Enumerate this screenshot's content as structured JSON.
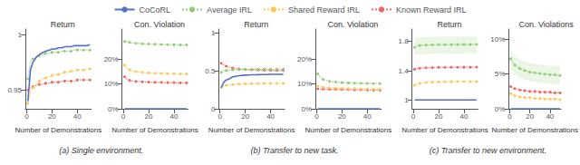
{
  "chart_data": [
    {
      "type": "line",
      "title": "Return",
      "xlabel": "Number of Demonstrations",
      "subtitle": "(a) Single environment.",
      "legend": "top",
      "grid": false,
      "x": [
        1,
        3,
        5,
        8,
        10,
        13,
        15,
        18,
        20,
        23,
        25,
        28,
        30,
        33,
        35,
        38,
        40,
        43,
        45,
        48,
        50
      ],
      "xlim": [
        -1,
        51
      ],
      "xticks": [
        0,
        20,
        40
      ],
      "ylim": [
        0.933,
        1.005
      ],
      "yticks": [
        0.95,
        1
      ],
      "series": [
        {
          "name": "CoCoRL",
          "line_style": "solid",
          "values": [
            0.94,
            0.968,
            0.975,
            0.98,
            0.982,
            0.984,
            0.985,
            0.986,
            0.987,
            0.987,
            0.988,
            0.988,
            0.989,
            0.989,
            0.989,
            0.99,
            0.99,
            0.99,
            0.99,
            0.99,
            0.991
          ]
        },
        {
          "name": "Average IRL",
          "line_style": "dotted",
          "marker": "circle",
          "values": [
            0.96,
            0.975,
            0.978,
            0.98,
            0.981,
            0.982,
            0.983,
            0.983,
            0.984,
            0.984,
            0.984,
            0.985,
            0.985,
            0.985,
            0.985,
            0.986,
            0.986,
            0.986,
            0.986,
            0.986,
            0.986
          ]
        },
        {
          "name": "Shared Reward IRL",
          "line_style": "dotted",
          "marker": "circle",
          "values": [
            0.938,
            0.948,
            0.952,
            0.956,
            0.958,
            0.96,
            0.961,
            0.962,
            0.963,
            0.964,
            0.964,
            0.965,
            0.966,
            0.966,
            0.967,
            0.967,
            0.968,
            0.968,
            0.968,
            0.969,
            0.969
          ]
        },
        {
          "name": "Known Reward IRL",
          "line_style": "dotted",
          "marker": "circle",
          "values": [
            0.95,
            0.952,
            0.953,
            0.954,
            0.955,
            0.955,
            0.956,
            0.956,
            0.957,
            0.957,
            0.957,
            0.958,
            0.958,
            0.958,
            0.958,
            0.958,
            0.959,
            0.959,
            0.959,
            0.959,
            0.959
          ]
        }
      ]
    },
    {
      "type": "line",
      "title": "Con. Violation",
      "xlabel": "Number of Demonstrations",
      "legend": "top",
      "grid": false,
      "x": [
        1,
        3,
        5,
        8,
        10,
        13,
        15,
        18,
        20,
        23,
        25,
        28,
        30,
        33,
        35,
        38,
        40,
        43,
        45,
        48,
        50
      ],
      "xlim": [
        -1,
        51
      ],
      "xticks": [
        0,
        20,
        40
      ],
      "ylim": [
        0.0,
        0.32
      ],
      "yticks": [
        {
          "value": 0.0,
          "label": "0%"
        },
        {
          "value": 0.1,
          "label": "10%"
        },
        {
          "value": 0.2,
          "label": "20%"
        }
      ],
      "series": [
        {
          "name": "CoCoRL",
          "line_style": "solid",
          "values": [
            0.0,
            0.0,
            0.0,
            0.0,
            0.0,
            0.0,
            0.0,
            0.0,
            0.0,
            0.0,
            0.0,
            0.0,
            0.0,
            0.0,
            0.0,
            0.0,
            0.0,
            0.0,
            0.0,
            0.0,
            0.0
          ]
        },
        {
          "name": "Average IRL",
          "line_style": "dotted",
          "marker": "circle",
          "values": [
            0.27,
            0.268,
            0.266,
            0.264,
            0.263,
            0.262,
            0.261,
            0.26,
            0.26,
            0.259,
            0.259,
            0.258,
            0.258,
            0.258,
            0.257,
            0.257,
            0.257,
            0.257,
            0.256,
            0.256,
            0.256
          ]
        },
        {
          "name": "Shared Reward IRL",
          "line_style": "dotted",
          "marker": "circle",
          "values": [
            0.175,
            0.162,
            0.156,
            0.151,
            0.149,
            0.147,
            0.146,
            0.145,
            0.144,
            0.143,
            0.143,
            0.142,
            0.142,
            0.142,
            0.141,
            0.141,
            0.141,
            0.141,
            0.14,
            0.14,
            0.14
          ]
        },
        {
          "name": "Known Reward IRL",
          "line_style": "dotted",
          "marker": "circle",
          "values": [
            0.128,
            0.118,
            0.114,
            0.111,
            0.11,
            0.109,
            0.108,
            0.108,
            0.107,
            0.107,
            0.106,
            0.106,
            0.106,
            0.105,
            0.105,
            0.105,
            0.105,
            0.104,
            0.104,
            0.104,
            0.104
          ]
        }
      ]
    },
    {
      "type": "line",
      "title": "Return",
      "xlabel": "Number of Demonstrations",
      "subtitle": "(b) Transfer to new task.",
      "legend": "top",
      "grid": false,
      "x": [
        1,
        3,
        5,
        8,
        10,
        13,
        15,
        18,
        20,
        23,
        25,
        28,
        30,
        33,
        35,
        38,
        40,
        43,
        45,
        48,
        50
      ],
      "xlim": [
        -1,
        51
      ],
      "xticks": [
        0,
        20,
        40
      ],
      "ylim": [
        0.0,
        1.05
      ],
      "yticks": [
        0,
        0.5,
        1
      ],
      "series": [
        {
          "name": "CoCoRL",
          "line_style": "solid",
          "values": [
            0.28,
            0.35,
            0.38,
            0.4,
            0.42,
            0.43,
            0.435,
            0.44,
            0.443,
            0.445,
            0.447,
            0.448,
            0.449,
            0.45,
            0.451,
            0.452,
            0.453,
            0.453,
            0.454,
            0.454,
            0.455
          ]
        },
        {
          "name": "Average IRL",
          "line_style": "dotted",
          "marker": "circle",
          "values": [
            0.48,
            0.5,
            0.505,
            0.51,
            0.513,
            0.515,
            0.516,
            0.517,
            0.518,
            0.518,
            0.519,
            0.519,
            0.52,
            0.52,
            0.521,
            0.521,
            0.521,
            0.522,
            0.522,
            0.522,
            0.522
          ]
        },
        {
          "name": "Shared Reward IRL",
          "line_style": "dotted",
          "marker": "circle",
          "values": [
            0.28,
            0.3,
            0.31,
            0.315,
            0.32,
            0.323,
            0.325,
            0.327,
            0.328,
            0.329,
            0.33,
            0.331,
            0.332,
            0.332,
            0.333,
            0.333,
            0.334,
            0.334,
            0.334,
            0.335,
            0.335
          ]
        },
        {
          "name": "Known Reward IRL",
          "line_style": "dotted",
          "marker": "circle",
          "values": [
            0.6,
            0.58,
            0.56,
            0.545,
            0.535,
            0.528,
            0.524,
            0.52,
            0.517,
            0.515,
            0.513,
            0.511,
            0.51,
            0.509,
            0.508,
            0.507,
            0.506,
            0.506,
            0.505,
            0.505,
            0.505
          ]
        }
      ]
    },
    {
      "type": "line",
      "title": "Con. Violation",
      "xlabel": "Number of Demonstrations",
      "legend": "top",
      "grid": false,
      "x": [
        1,
        3,
        5,
        8,
        10,
        13,
        15,
        18,
        20,
        23,
        25,
        28,
        30,
        33,
        35,
        38,
        40,
        43,
        45,
        48,
        50
      ],
      "xlim": [
        -1,
        51
      ],
      "xticks": [
        0,
        20,
        40
      ],
      "ylim": [
        0.0,
        0.32
      ],
      "yticks": [
        {
          "value": 0.0,
          "label": "0%"
        },
        {
          "value": 0.1,
          "label": "10%"
        },
        {
          "value": 0.2,
          "label": "20%"
        }
      ],
      "series": [
        {
          "name": "CoCoRL",
          "line_style": "solid",
          "values": [
            0.0,
            0.0,
            0.0,
            0.0,
            0.0,
            0.0,
            0.0,
            0.0,
            0.0,
            0.0,
            0.0,
            0.0,
            0.0,
            0.0,
            0.0,
            0.0,
            0.0,
            0.0,
            0.0,
            0.0,
            0.0
          ]
        },
        {
          "name": "Average IRL",
          "line_style": "dotted",
          "marker": "circle",
          "values": [
            0.14,
            0.125,
            0.118,
            0.113,
            0.11,
            0.108,
            0.107,
            0.106,
            0.105,
            0.105,
            0.104,
            0.104,
            0.103,
            0.103,
            0.103,
            0.102,
            0.102,
            0.102,
            0.101,
            0.101,
            0.101
          ]
        },
        {
          "name": "Shared Reward IRL",
          "line_style": "dotted",
          "marker": "circle",
          "values": [
            0.09,
            0.088,
            0.086,
            0.085,
            0.084,
            0.083,
            0.083,
            0.082,
            0.082,
            0.081,
            0.081,
            0.081,
            0.081,
            0.08,
            0.08,
            0.08,
            0.08,
            0.08,
            0.079,
            0.079,
            0.079
          ]
        },
        {
          "name": "Known Reward IRL",
          "line_style": "dotted",
          "marker": "circle",
          "values": [
            0.08,
            0.08,
            0.079,
            0.079,
            0.078,
            0.078,
            0.078,
            0.077,
            0.077,
            0.077,
            0.077,
            0.076,
            0.076,
            0.076,
            0.076,
            0.076,
            0.075,
            0.075,
            0.075,
            0.075,
            0.075
          ]
        }
      ]
    },
    {
      "type": "line",
      "title": "Return",
      "xlabel": "Number of Demonstrations",
      "subtitle": "(c) Transfer to new environment.",
      "legend": "top",
      "grid": false,
      "x": [
        1,
        3,
        5,
        8,
        10,
        13,
        15,
        18,
        20,
        23,
        25,
        28,
        30,
        33,
        35,
        38,
        40,
        43,
        45,
        48,
        50
      ],
      "xlim": [
        -1,
        51
      ],
      "xticks": [
        0,
        20,
        40
      ],
      "ylim": [
        0.88,
        1.97
      ],
      "yticks": [
        1,
        1.4,
        1.8
      ],
      "series": [
        {
          "name": "CoCoRL",
          "line_style": "solid",
          "values": [
            1.0,
            1.0,
            1.0,
            1.0,
            1.0,
            1.0,
            1.0,
            1.0,
            1.0,
            1.0,
            1.0,
            1.0,
            1.0,
            1.0,
            1.0,
            1.0,
            1.0,
            1.0,
            1.0,
            1.0,
            1.0
          ]
        },
        {
          "name": "Average IRL",
          "line_style": "dotted",
          "marker": "circle",
          "values": [
            1.72,
            1.74,
            1.745,
            1.748,
            1.75,
            1.752,
            1.753,
            1.754,
            1.755,
            1.755,
            1.756,
            1.756,
            1.757,
            1.757,
            1.757,
            1.758,
            1.758,
            1.758,
            1.758,
            1.759,
            1.759
          ],
          "upper": [
            1.84,
            1.855,
            1.86,
            1.862,
            1.863,
            1.864,
            1.865,
            1.865,
            1.866,
            1.866,
            1.866,
            1.867,
            1.867,
            1.867,
            1.867,
            1.868,
            1.868,
            1.868,
            1.868,
            1.868,
            1.868
          ],
          "lower": [
            1.6,
            1.62,
            1.625,
            1.628,
            1.63,
            1.632,
            1.633,
            1.634,
            1.635,
            1.635,
            1.636,
            1.636,
            1.637,
            1.637,
            1.637,
            1.638,
            1.638,
            1.638,
            1.638,
            1.639,
            1.639
          ]
        },
        {
          "name": "Shared Reward IRL",
          "line_style": "dotted",
          "marker": "circle",
          "values": [
            1.2,
            1.22,
            1.23,
            1.235,
            1.24,
            1.243,
            1.245,
            1.246,
            1.247,
            1.248,
            1.249,
            1.249,
            1.25,
            1.25,
            1.251,
            1.251,
            1.251,
            1.252,
            1.252,
            1.252,
            1.252
          ]
        },
        {
          "name": "Known Reward IRL",
          "line_style": "dotted",
          "marker": "circle",
          "values": [
            1.42,
            1.43,
            1.435,
            1.438,
            1.44,
            1.442,
            1.443,
            1.444,
            1.445,
            1.445,
            1.446,
            1.446,
            1.447,
            1.447,
            1.447,
            1.448,
            1.448,
            1.448,
            1.448,
            1.449,
            1.449
          ]
        }
      ]
    },
    {
      "type": "line",
      "title": "Con. Violations",
      "xlabel": "Number of Demonstrations",
      "legend": "top",
      "grid": false,
      "x": [
        1,
        3,
        5,
        8,
        10,
        13,
        15,
        18,
        20,
        23,
        25,
        28,
        30,
        33,
        35,
        38,
        40,
        43,
        45,
        48,
        50
      ],
      "xlim": [
        -1,
        51
      ],
      "xticks": [
        0,
        20,
        40
      ],
      "ylim": [
        0.0,
        0.115
      ],
      "yticks": [
        {
          "value": 0.0,
          "label": "0%"
        },
        {
          "value": 0.05,
          "label": "5%"
        },
        {
          "value": 0.1,
          "label": "10%"
        }
      ],
      "series": [
        {
          "name": "CoCoRL",
          "line_style": "solid",
          "values": [
            0.0,
            0.0,
            0.0,
            0.0,
            0.0,
            0.0,
            0.0,
            0.0,
            0.0,
            0.0,
            0.0,
            0.0,
            0.0,
            0.0,
            0.0,
            0.0,
            0.0,
            0.0,
            0.0,
            0.0,
            0.0
          ]
        },
        {
          "name": "Average IRL",
          "line_style": "dotted",
          "marker": "circle",
          "values": [
            0.072,
            0.067,
            0.063,
            0.06,
            0.058,
            0.056,
            0.055,
            0.054,
            0.053,
            0.052,
            0.052,
            0.051,
            0.051,
            0.05,
            0.05,
            0.05,
            0.049,
            0.049,
            0.049,
            0.048,
            0.048
          ],
          "upper": [
            0.085,
            0.08,
            0.076,
            0.073,
            0.071,
            0.069,
            0.068,
            0.067,
            0.066,
            0.065,
            0.065,
            0.064,
            0.064,
            0.063,
            0.063,
            0.062,
            0.062,
            0.062,
            0.061,
            0.061,
            0.061
          ],
          "lower": [
            0.058,
            0.054,
            0.05,
            0.047,
            0.045,
            0.043,
            0.042,
            0.041,
            0.04,
            0.039,
            0.039,
            0.038,
            0.038,
            0.037,
            0.037,
            0.036,
            0.036,
            0.036,
            0.035,
            0.035,
            0.035
          ]
        },
        {
          "name": "Shared Reward IRL",
          "line_style": "dotted",
          "marker": "circle",
          "values": [
            0.022,
            0.02,
            0.019,
            0.018,
            0.017,
            0.017,
            0.016,
            0.016,
            0.016,
            0.015,
            0.015,
            0.015,
            0.015,
            0.015,
            0.014,
            0.014,
            0.014,
            0.014,
            0.014,
            0.014,
            0.013
          ]
        },
        {
          "name": "Known Reward IRL",
          "line_style": "dotted",
          "marker": "circle",
          "values": [
            0.032,
            0.03,
            0.029,
            0.028,
            0.027,
            0.027,
            0.026,
            0.026,
            0.025,
            0.025,
            0.025,
            0.025,
            0.024,
            0.024,
            0.024,
            0.024,
            0.024,
            0.023,
            0.023,
            0.023,
            0.023
          ]
        }
      ]
    }
  ]
}
